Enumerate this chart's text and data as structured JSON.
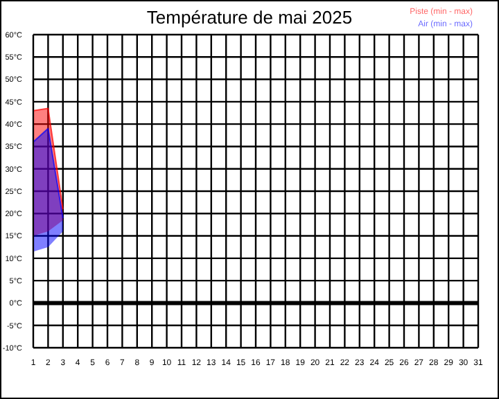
{
  "chart_data": {
    "type": "line",
    "title": "Température de mai 2025",
    "series": [
      {
        "name": "Piste (min - max)",
        "color": "#ff0000",
        "x": [
          1,
          2,
          3
        ],
        "values": [
          43,
          43.5,
          21
        ],
        "lower": [
          15,
          16,
          18.5
        ],
        "upper": [
          43,
          43.5,
          21
        ]
      },
      {
        "name": "Air (min - max)",
        "color": "#0000ff",
        "x": [
          1,
          2,
          3
        ],
        "values": [
          36,
          39,
          19
        ],
        "lower": [
          11.5,
          12.5,
          16
        ],
        "upper": [
          36,
          39,
          19
        ]
      }
    ],
    "xlim": [
      1,
      31
    ],
    "xticks": [
      1,
      2,
      3,
      4,
      5,
      6,
      7,
      8,
      9,
      10,
      11,
      12,
      13,
      14,
      15,
      16,
      17,
      18,
      19,
      20,
      21,
      22,
      23,
      24,
      25,
      26,
      27,
      28,
      29,
      30,
      31
    ],
    "ylim": [
      -10,
      60
    ],
    "yticks": [
      {
        "value": -10,
        "label": "-10°C"
      },
      {
        "value": -5,
        "label": "-5°C"
      },
      {
        "value": 0,
        "label": "0°C"
      },
      {
        "value": 5,
        "label": "5°C"
      },
      {
        "value": 10,
        "label": "10°C"
      },
      {
        "value": 15,
        "label": "15°C"
      },
      {
        "value": 20,
        "label": "20°C"
      },
      {
        "value": 25,
        "label": "25°C"
      },
      {
        "value": 30,
        "label": "30°C"
      },
      {
        "value": 35,
        "label": "35°C"
      },
      {
        "value": 40,
        "label": "40°C"
      },
      {
        "value": 45,
        "label": "45°C"
      },
      {
        "value": 50,
        "label": "50°C"
      },
      {
        "value": 55,
        "label": "55°C"
      },
      {
        "value": 60,
        "label": "60°C"
      }
    ],
    "ref_lines": [
      {
        "axis": "y",
        "value": 0,
        "color": "#000000"
      }
    ],
    "grid": true,
    "legend": "top right"
  }
}
